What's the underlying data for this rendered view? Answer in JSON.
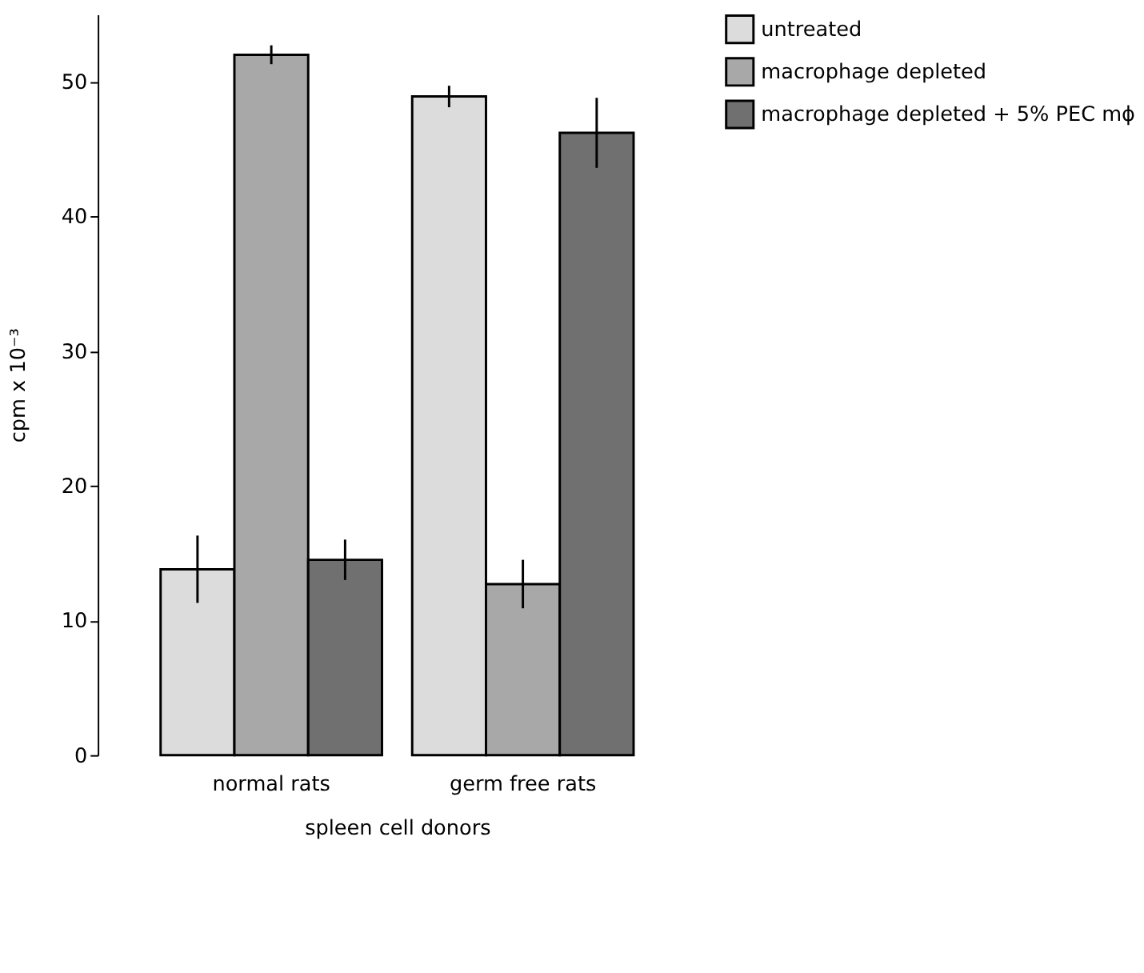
{
  "chart_data": {
    "type": "bar",
    "xlabel": "spleen cell donors",
    "ylabel": "cpm x 10⁻³",
    "categories": [
      "normal rats",
      "germ free rats"
    ],
    "series": [
      {
        "name": "untreated",
        "color": "#dcdcdc",
        "values": [
          13.8,
          48.9
        ],
        "errors": [
          2.5,
          0.8
        ]
      },
      {
        "name": "macrophage depleted",
        "color": "#a8a8a8",
        "values": [
          52.0,
          12.7
        ],
        "errors": [
          0.7,
          1.8
        ]
      },
      {
        "name": "macrophage depleted + 5% PEC mϕ",
        "color": "#707070",
        "values": [
          14.5,
          46.2
        ],
        "errors": [
          1.5,
          2.6
        ]
      }
    ],
    "ylim": [
      0,
      55
    ],
    "yticks": [
      0,
      10,
      20,
      30,
      40,
      50
    ],
    "grid": false,
    "legend": "right"
  }
}
